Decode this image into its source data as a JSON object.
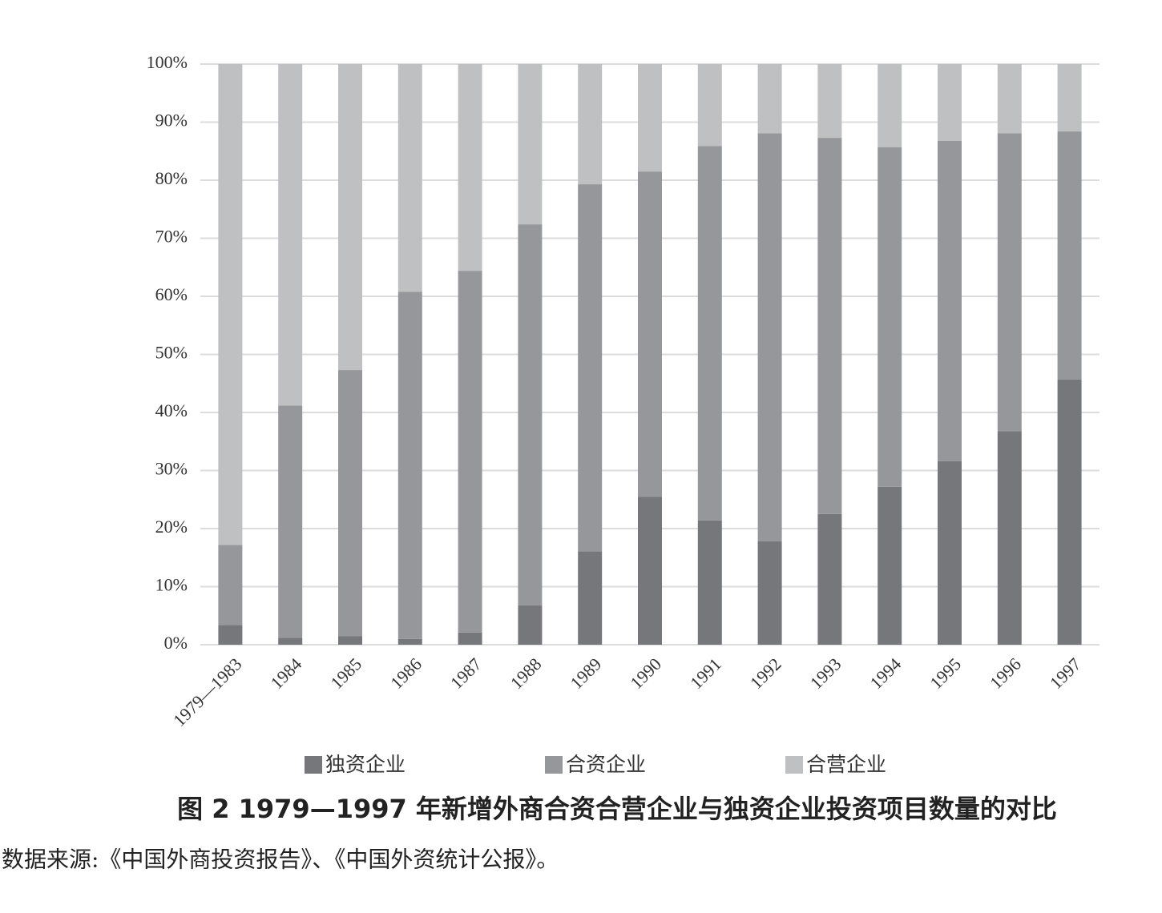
{
  "chart_data": {
    "type": "stacked_bar",
    "title": "图 2 1979—1997 年新增外商合资合营企业与独资企业投资项目数量的对比",
    "source": "数据来源:《中国外商投资报告》、《中国外资统计公报》。",
    "categories": [
      "1979—1983",
      "1984",
      "1985",
      "1986",
      "1987",
      "1988",
      "1989",
      "1990",
      "1991",
      "1992",
      "1993",
      "1994",
      "1995",
      "1996",
      "1997"
    ],
    "series": [
      {
        "name": "独资企业",
        "color": "#76777b",
        "values": [
          3.4,
          1.2,
          1.5,
          1.0,
          2.1,
          6.8,
          16.1,
          25.5,
          21.4,
          17.8,
          22.5,
          27.2,
          31.6,
          36.8,
          45.7
        ]
      },
      {
        "name": "合资企业",
        "color": "#96979b",
        "values": [
          13.8,
          40.0,
          45.8,
          59.8,
          62.3,
          65.6,
          63.2,
          56.0,
          64.5,
          70.3,
          64.8,
          58.5,
          55.2,
          51.3,
          42.7
        ]
      },
      {
        "name": "合营企业",
        "color": "#bfc0c2",
        "values": [
          82.8,
          58.8,
          52.7,
          39.2,
          35.6,
          27.6,
          20.7,
          18.5,
          14.1,
          11.9,
          12.7,
          14.3,
          13.2,
          11.9,
          11.6
        ]
      }
    ],
    "ylim": [
      0,
      100
    ],
    "yticks": [
      {
        "value": 0,
        "label": "0%"
      },
      {
        "value": 10,
        "label": "10%"
      },
      {
        "value": 20,
        "label": "20%"
      },
      {
        "value": 30,
        "label": "30%"
      },
      {
        "value": 40,
        "label": "40%"
      },
      {
        "value": 50,
        "label": "50%"
      },
      {
        "value": 60,
        "label": "60%"
      },
      {
        "value": 70,
        "label": "70%"
      },
      {
        "value": 80,
        "label": "80%"
      },
      {
        "value": 90,
        "label": "90%"
      },
      {
        "value": 100,
        "label": "100%"
      }
    ],
    "grid": true,
    "legend": "bottom"
  }
}
